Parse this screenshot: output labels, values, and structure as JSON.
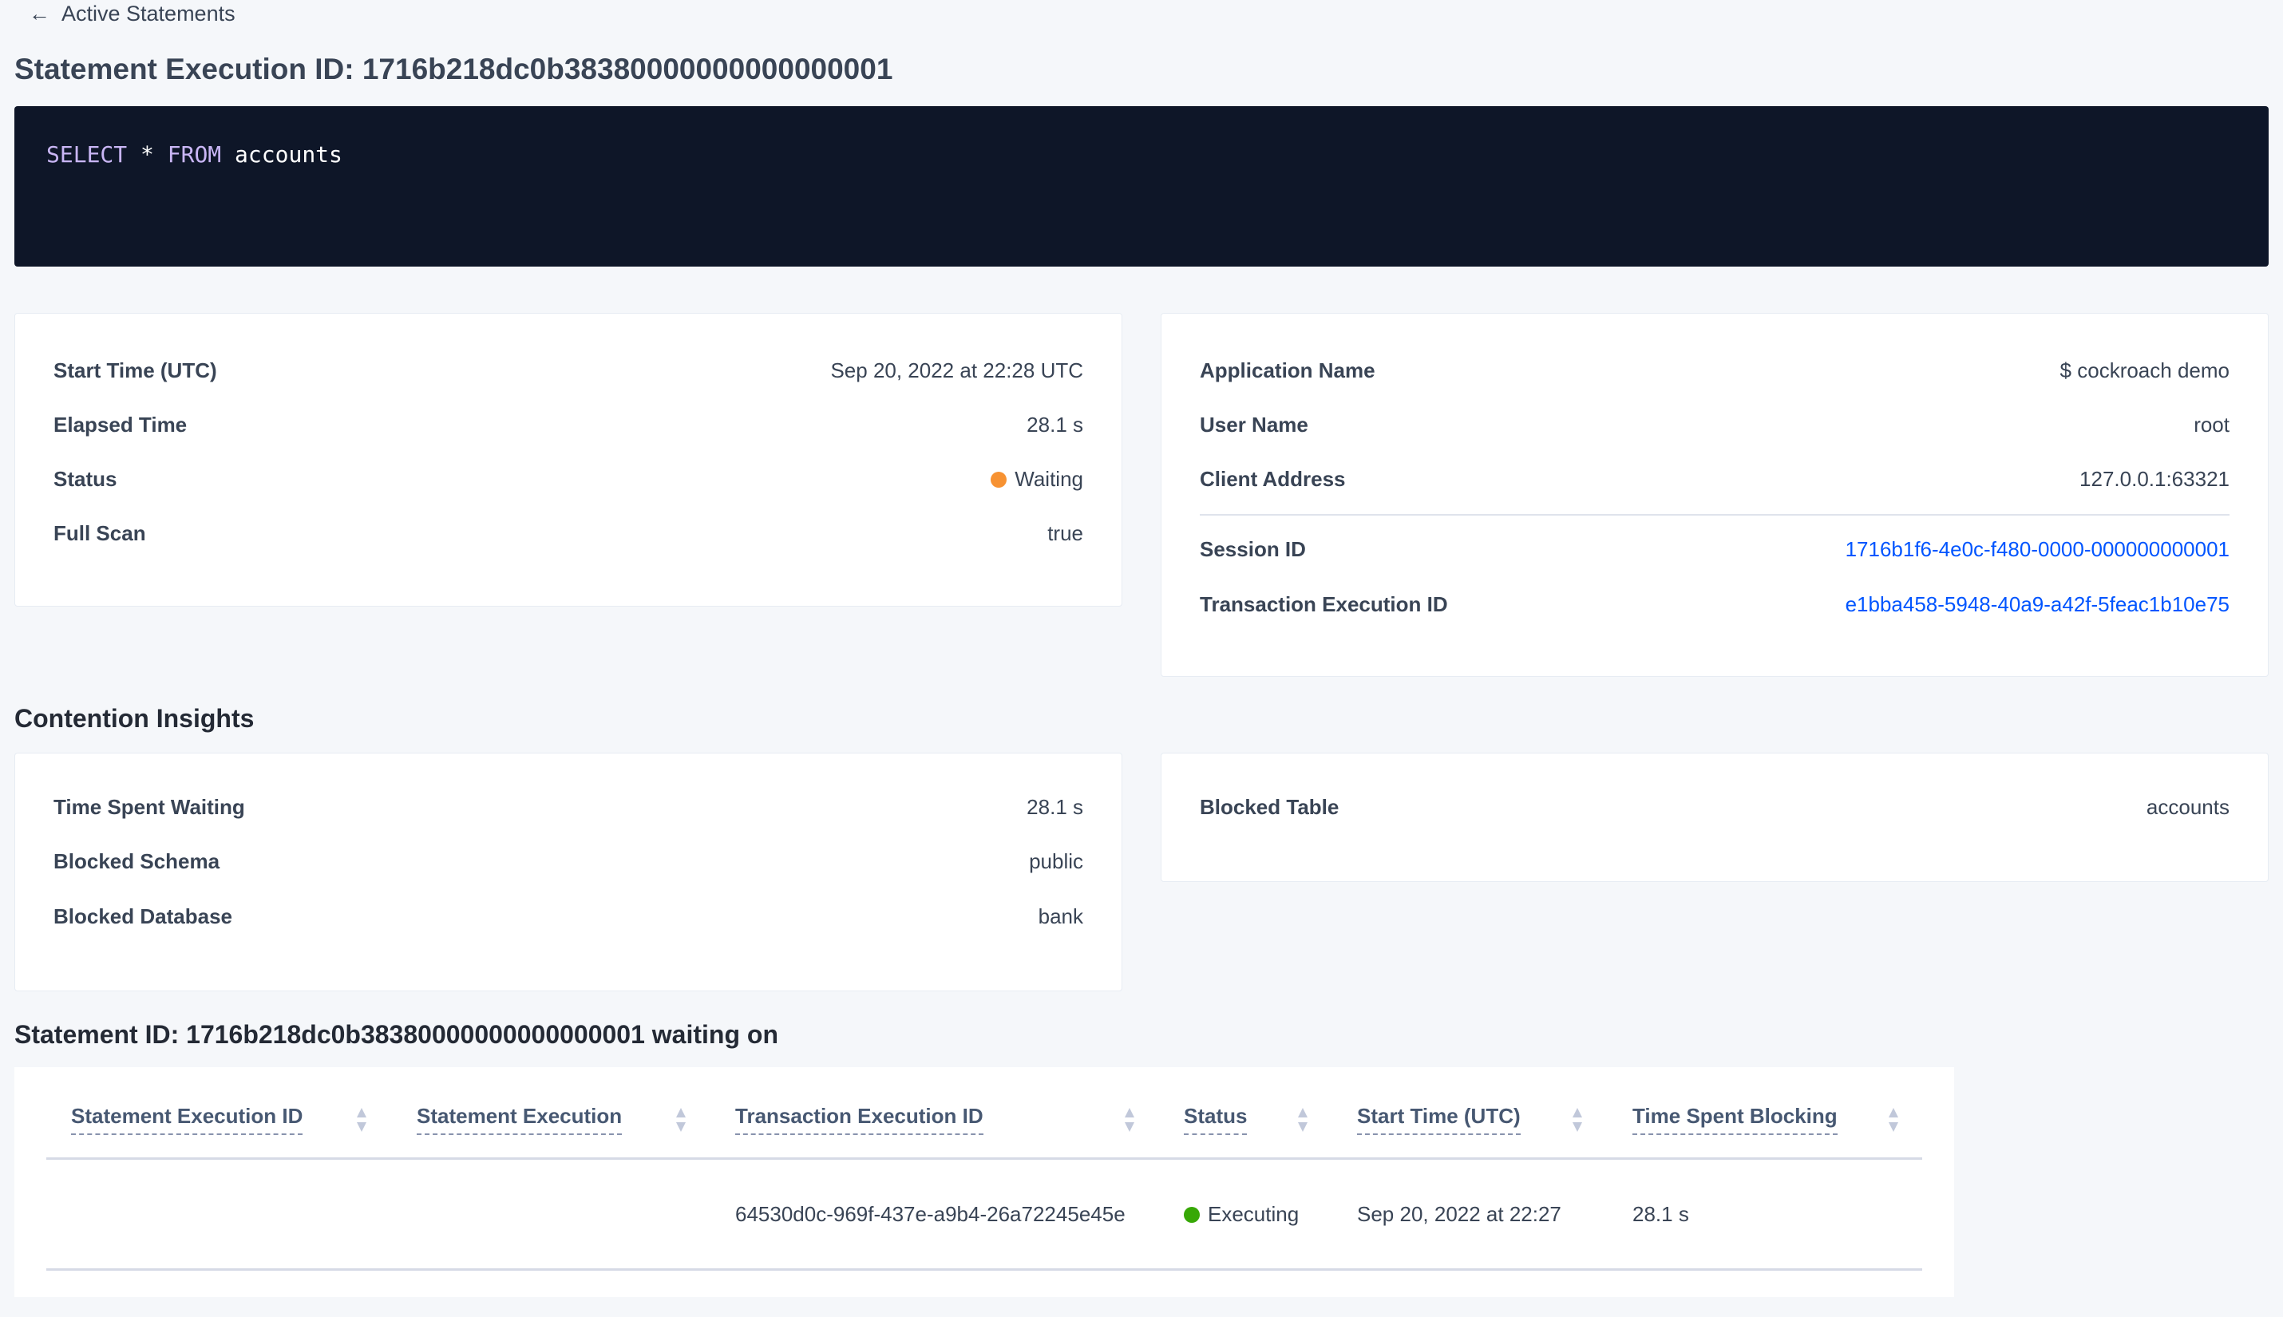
{
  "nav": {
    "back_label": "Active Statements"
  },
  "page_title": "Statement Execution ID: 1716b218dc0b38380000000000000001",
  "sql": {
    "keyword1": "SELECT",
    "star": "*",
    "keyword2": "FROM",
    "table": "accounts"
  },
  "details_left": [
    {
      "label": "Start Time (UTC)",
      "value": "Sep 20, 2022 at 22:28 UTC"
    },
    {
      "label": "Elapsed Time",
      "value": "28.1 s"
    },
    {
      "label": "Status",
      "value": "Waiting",
      "status_color": "#f79232"
    },
    {
      "label": "Full Scan",
      "value": "true"
    }
  ],
  "details_right": [
    {
      "label": "Application Name",
      "value": "$ cockroach demo"
    },
    {
      "label": "User Name",
      "value": "root"
    },
    {
      "label": "Client Address",
      "value": "127.0.0.1:63321"
    },
    {
      "label": "Session ID",
      "value": "1716b1f6-4e0c-f480-0000-000000000001"
    },
    {
      "label": "Transaction Execution ID",
      "value": "e1bba458-5948-40a9-a42f-5feac1b10e75"
    }
  ],
  "contention": {
    "heading": "Contention Insights",
    "left": [
      {
        "label": "Time Spent Waiting",
        "value": "28.1 s"
      },
      {
        "label": "Blocked Schema",
        "value": "public"
      },
      {
        "label": "Blocked Database",
        "value": "bank"
      }
    ],
    "right": [
      {
        "label": "Blocked Table",
        "value": "accounts"
      }
    ]
  },
  "waiting": {
    "heading": "Statement ID: 1716b218dc0b38380000000000000001 waiting on",
    "columns": [
      "Statement Execution ID",
      "Statement Execution",
      "Transaction Execution ID",
      "Status",
      "Start Time (UTC)",
      "Time Spent Blocking"
    ],
    "rows": [
      {
        "stmt_exec_id": "",
        "stmt_exec": "",
        "txn_exec_id": "64530d0c-969f-437e-a9b4-26a72245e45e",
        "status": "Executing",
        "status_color": "#37a806",
        "start_time": "Sep 20, 2022 at 22:27",
        "time_blocking": "28.1 s"
      }
    ]
  }
}
